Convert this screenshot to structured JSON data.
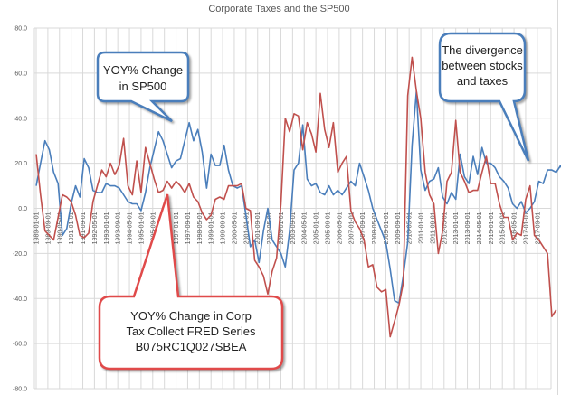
{
  "chart_data": {
    "type": "line",
    "title": "Corporate Taxes and the SP500",
    "xlabel": "",
    "ylabel": "",
    "ylim": [
      -80,
      80
    ],
    "yticks": [
      "80.0",
      "60.0",
      "40.0",
      "20.0",
      "0.0",
      "-20.0",
      "-40.0",
      "-60.0",
      "-80.0"
    ],
    "grid": true,
    "legend": "none",
    "x_start": "1989-01-01",
    "x_frequency": "quarterly",
    "xtick_labels": [
      "1989-01-01",
      "1989-09-01",
      "1990-05-01",
      "1991-01-01",
      "1991-09-01",
      "1992-05-01",
      "1993-01-01",
      "1993-09-01",
      "1994-05-01",
      "1995-01-01",
      "1995-09-01",
      "1996-05-01",
      "1997-01-01",
      "1997-09-01",
      "1998-05-01",
      "1999-01-01",
      "1999-09-01",
      "2000-05-01",
      "2001-01-01",
      "2001-09-01",
      "2002-05-01",
      "2003-01-01",
      "2003-09-01",
      "2004-05-01",
      "2005-01-01",
      "2005-09-01",
      "2006-05-01",
      "2007-01-01",
      "2007-09-01",
      "2008-05-01",
      "2009-01-01",
      "2009-09-01",
      "2010-05-01",
      "2011-01-01",
      "2011-09-01",
      "2012-05-01",
      "2013-01-01",
      "2013-09-01",
      "2014-05-01",
      "2015-01-01",
      "2015-09-01",
      "2016-05-01",
      "2017-01-01",
      "2017-09-01"
    ],
    "series": [
      {
        "name": "YOY% Change in SP500",
        "color": "#4a7ebb",
        "values": [
          10,
          20,
          30,
          26,
          16,
          11,
          -12,
          -9,
          2,
          10,
          5,
          22,
          18,
          8,
          7,
          7,
          11,
          10,
          10,
          9,
          6,
          3,
          2,
          2,
          -1,
          7,
          18,
          26,
          34,
          30,
          24,
          18,
          21,
          22,
          30,
          38,
          30,
          35,
          25,
          9,
          24,
          19,
          19,
          28,
          17,
          10,
          9,
          10,
          -3,
          -17,
          -14,
          -24,
          -10,
          0,
          -14,
          -17,
          -20,
          -26,
          -10,
          17,
          20,
          37,
          13,
          10,
          11,
          7,
          6,
          10,
          6,
          8,
          6,
          9,
          12,
          10,
          20,
          14,
          8,
          0,
          -5,
          -10,
          -15,
          -27,
          -41,
          -42,
          -30,
          -15,
          28,
          52,
          17,
          8,
          12,
          13,
          18,
          5,
          2,
          7,
          4,
          24,
          14,
          11,
          23,
          15,
          27,
          20,
          20,
          18,
          14,
          12,
          9,
          2,
          0,
          3,
          -2,
          0,
          3,
          12,
          11,
          17,
          17,
          16,
          19,
          14,
          13
        ]
      },
      {
        "name": "YOY% Change in Corp Tax Collect FRED Series B075RC1Q027SBEA",
        "color": "#c0504d",
        "values": [
          24,
          6,
          -10,
          -12,
          -14,
          -4,
          6,
          5,
          3,
          -3,
          -12,
          -13,
          -11,
          3,
          10,
          17,
          14,
          20,
          15,
          19,
          31,
          10,
          6,
          21,
          7,
          27,
          20,
          13,
          7,
          8,
          12,
          9,
          12,
          10,
          7,
          11,
          5,
          3,
          -2,
          -5,
          -3,
          4,
          5,
          4,
          10,
          10,
          10,
          11,
          0,
          -1,
          -23,
          -26,
          -30,
          -38,
          -28,
          -22,
          2,
          40,
          34,
          42,
          41,
          26,
          38,
          33,
          25,
          51,
          35,
          27,
          38,
          16,
          20,
          23,
          -1,
          -6,
          -9,
          -14,
          -26,
          -25,
          -35,
          -37,
          -36,
          -57,
          -50,
          -43,
          -33,
          50,
          67,
          52,
          40,
          16,
          6,
          2,
          -20,
          -10,
          12,
          16,
          39,
          16,
          12,
          7,
          8,
          8,
          16,
          23,
          11,
          11,
          2,
          -4,
          -4,
          -14,
          -11,
          -12,
          4,
          10,
          -12,
          -14,
          -17,
          -20,
          -48,
          -45
        ]
      }
    ],
    "annotations": [
      {
        "text": "YOY% Change in SP500",
        "lines": [
          "YOY% Change",
          "in SP500"
        ],
        "color": "#4a7ebb"
      },
      {
        "text": "The divergence between stocks and taxes",
        "lines": [
          "The divergence",
          "between stocks",
          "and taxes"
        ],
        "color": "#4a7ebb"
      },
      {
        "text": "YOY% Change in Corp Tax Collect FRED Series B075RC1Q027SBEA",
        "lines": [
          "YOY% Change in Corp",
          "Tax Collect FRED Series",
          "B075RC1Q027SBEA"
        ],
        "color": "#e04a4a"
      }
    ]
  }
}
